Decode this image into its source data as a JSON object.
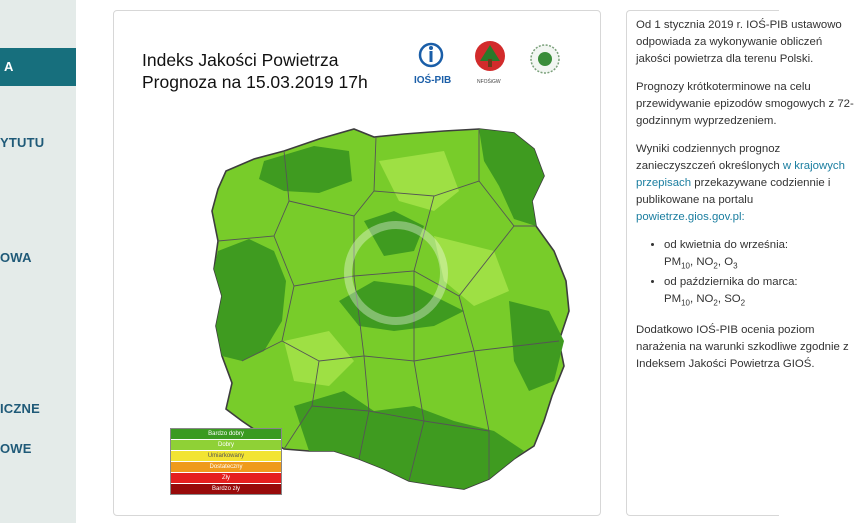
{
  "sidebar": {
    "items": [
      {
        "label": "A",
        "active": true
      },
      {
        "label": "YTUTU"
      },
      {
        "label": "OWA"
      },
      {
        "label": "ICZNE"
      },
      {
        "label": "OWE"
      }
    ]
  },
  "map": {
    "title_line1": "Indeks Jakości Powietrza",
    "title_line2": "Prognoza na 15.03.2019 17h",
    "logos": [
      {
        "name": "ios-pib-logo",
        "text": "IOŚ-PIB"
      },
      {
        "name": "nfosigw-logo",
        "text": "NFOŚiGW"
      },
      {
        "name": "emblem-logo",
        "text": ""
      }
    ],
    "legend": [
      {
        "label": "Bardzo dobry",
        "color": "#3a9a21"
      },
      {
        "label": "Dobry",
        "color": "#8fd136"
      },
      {
        "label": "Umiarkowany",
        "color": "#f2e433"
      },
      {
        "label": "Dostateczny",
        "color": "#ef9a1c"
      },
      {
        "label": "Zły",
        "color": "#e51f1f"
      },
      {
        "label": "Bardzo zły",
        "color": "#980a0a"
      }
    ]
  },
  "text": {
    "p1": "Od 1 stycznia 2019 r. IOŚ-PIB ustawowo odpowiada za wykonywanie obliczeń jakości powietrza dla terenu Polski.",
    "p2": "Prognozy krótkoterminowe na celu przewidywanie epizodów smogowych z 72-godzinnym wyprzedzeniem.",
    "p3_start": "Wyniki codziennych prognoz zanieczyszczeń określonych",
    "p3_link": "w krajowych przepisach",
    "p3_end": "przekazywane codziennie i publikowane na portalu",
    "p3_portal": "powietrze.gios.gov.pl:",
    "li1_text": "od kwietnia do września:",
    "li1_pm": "PM",
    "li1_pmsub": "10",
    "li1_no": ", NO",
    "li1_nosub": "2",
    "li1_o": ", O",
    "li1_osub": "3",
    "li2_text": "od października do marca:",
    "li2_pm": "PM",
    "li2_pmsub": "10",
    "li2_no": ", NO",
    "li2_nosub": "2",
    "li2_so": ", SO",
    "li2_sosub": "2",
    "p4": "Dodatkowo IOŚ-PIB ocenia poziom narażenia na warunki szkodliwe zgodnie z Indeksem Jakości Powietrza GIOŚ."
  }
}
